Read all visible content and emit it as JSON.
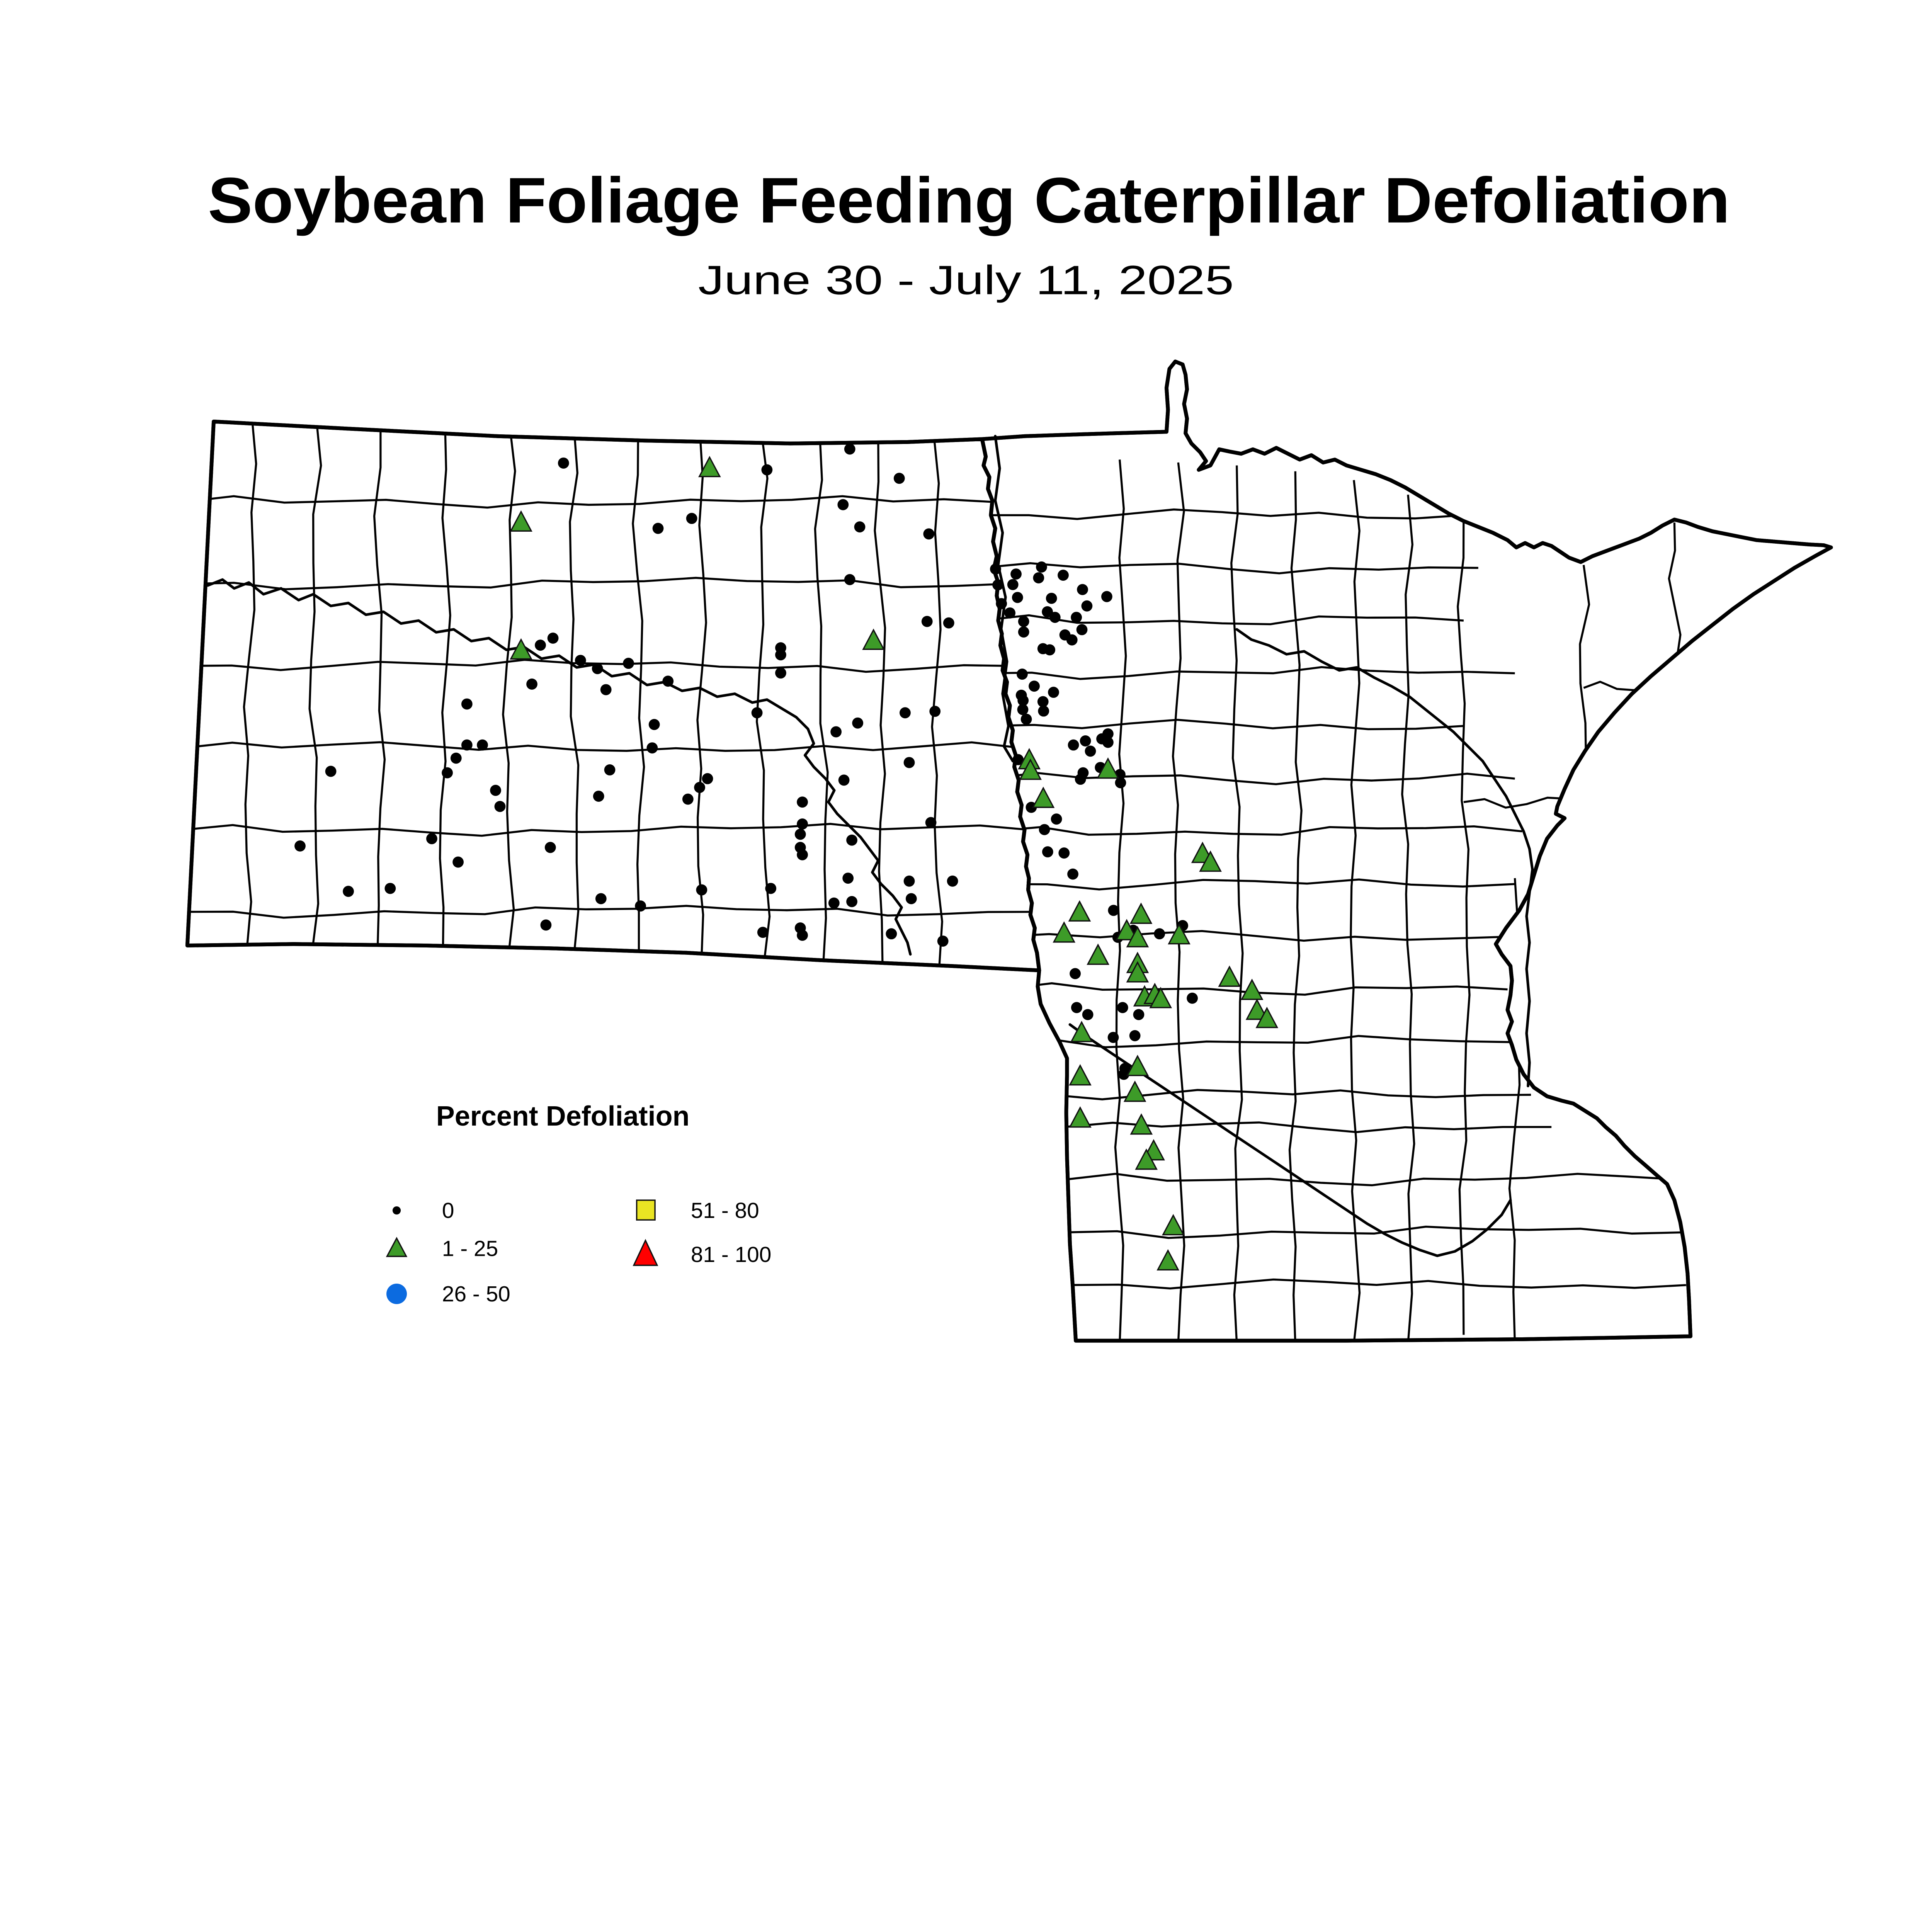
{
  "title": "Soybean Foliage Feeding Caterpillar Defoliation",
  "subtitle": "June 30 - July 11, 2025",
  "legend": {
    "title": "Percent Defoliation",
    "items": [
      {
        "label": "0",
        "shape": "dot",
        "color": "#000000"
      },
      {
        "label": "1 - 25",
        "shape": "triangle",
        "color": "#3D9B28"
      },
      {
        "label": "26 - 50",
        "shape": "circle",
        "color": "#0C6BE0"
      },
      {
        "label": "51 - 80",
        "shape": "square",
        "color": "#E9E423"
      },
      {
        "label": "81 - 100",
        "shape": "triangle-large",
        "color": "#FF0000"
      }
    ]
  },
  "colors": {
    "dot": "#000000",
    "triangle_fill": "#3D9B28",
    "triangle_stroke": "#111111",
    "outline": "#000000"
  },
  "points": {
    "zero": [
      [
        385,
        316.4
      ],
      [
        377.8,
        436
      ],
      [
        369.2,
        440.8
      ],
      [
        396.6,
        451.2
      ],
      [
        408.2,
        456.8
      ],
      [
        363.4,
        467.4
      ],
      [
        414,
        471.2
      ],
      [
        319,
        481
      ],
      [
        319,
        509
      ],
      [
        329.6,
        509
      ],
      [
        311.6,
        518
      ],
      [
        226,
        527
      ],
      [
        305.6,
        528
      ],
      [
        338.6,
        540
      ],
      [
        341.6,
        551
      ],
      [
        416.6,
        526
      ],
      [
        409,
        544
      ],
      [
        205,
        578
      ],
      [
        295,
        573
      ],
      [
        313,
        589
      ],
      [
        376,
        579
      ],
      [
        238,
        609
      ],
      [
        266.6,
        607
      ],
      [
        410.6,
        614
      ],
      [
        373,
        632
      ],
      [
        524,
        321
      ],
      [
        580.6,
        306.8
      ],
      [
        614.4,
        326.8
      ],
      [
        576,
        344.8
      ],
      [
        472.6,
        354.2
      ],
      [
        449.6,
        361
      ],
      [
        587.4,
        360
      ],
      [
        634.6,
        364.8
      ],
      [
        580.6,
        396
      ],
      [
        633.4,
        424.6
      ],
      [
        648.2,
        425.6
      ],
      [
        533.4,
        442.6
      ],
      [
        533.4,
        447.4
      ],
      [
        533.4,
        459.8
      ],
      [
        429.4,
        453.2
      ],
      [
        456.4,
        465.4
      ],
      [
        517.2,
        487
      ],
      [
        447,
        495
      ],
      [
        586,
        494
      ],
      [
        571.2,
        500
      ],
      [
        618.4,
        487
      ],
      [
        638.8,
        486
      ],
      [
        445.6,
        511
      ],
      [
        621.2,
        521
      ],
      [
        576.6,
        533
      ],
      [
        483.4,
        532
      ],
      [
        478,
        538
      ],
      [
        470,
        546
      ],
      [
        548.2,
        548
      ],
      [
        636,
        562
      ],
      [
        548.2,
        563
      ],
      [
        546.8,
        570
      ],
      [
        546.8,
        579
      ],
      [
        548.2,
        584
      ],
      [
        582,
        574
      ],
      [
        579.4,
        600
      ],
      [
        621.2,
        602
      ],
      [
        650.8,
        602
      ],
      [
        479.4,
        608
      ],
      [
        526.6,
        607
      ],
      [
        622.6,
        614
      ],
      [
        569.8,
        617
      ],
      [
        582,
        616
      ],
      [
        437.6,
        619
      ],
      [
        521.2,
        637
      ],
      [
        546.8,
        634
      ],
      [
        548.2,
        639
      ],
      [
        609,
        638
      ],
      [
        644.2,
        643
      ],
      [
        680.2,
        388.8
      ],
      [
        694.2,
        392.2
      ],
      [
        711.6,
        387.4
      ],
      [
        709.6,
        394.8
      ],
      [
        726.4,
        393
      ],
      [
        681.8,
        399.6
      ],
      [
        692,
        399.4
      ],
      [
        739.6,
        402.8
      ],
      [
        756.2,
        407.6
      ],
      [
        684.2,
        412.4
      ],
      [
        695.2,
        408.2
      ],
      [
        690,
        418.8
      ],
      [
        718.4,
        408.8
      ],
      [
        715.6,
        418
      ],
      [
        720.8,
        421.8
      ],
      [
        742.6,
        414
      ],
      [
        699.4,
        424.6
      ],
      [
        735.4,
        421.8
      ],
      [
        699.4,
        431.8
      ],
      [
        727.6,
        433.8
      ],
      [
        732.4,
        437.2
      ],
      [
        739.2,
        430.2
      ],
      [
        712.6,
        443.2
      ],
      [
        717.2,
        444
      ],
      [
        698.4,
        460.6
      ],
      [
        706.6,
        468.8
      ],
      [
        697.8,
        475
      ],
      [
        699,
        478.6
      ],
      [
        719.8,
        473
      ],
      [
        712.6,
        479.4
      ],
      [
        698.8,
        484.8
      ],
      [
        701.2,
        491.4
      ],
      [
        713,
        485.8
      ],
      [
        757,
        501.4
      ],
      [
        752.8,
        504.8
      ],
      [
        741.6,
        506.2
      ],
      [
        733.4,
        509
      ],
      [
        757,
        507.2
      ],
      [
        745,
        513.2
      ],
      [
        695.6,
        519
      ],
      [
        738.2,
        532.4
      ],
      [
        751.8,
        524.4
      ],
      [
        765.2,
        529.2
      ],
      [
        765.6,
        534.8
      ],
      [
        740,
        528
      ],
      [
        704.6,
        551.6
      ],
      [
        721.8,
        559.6
      ],
      [
        713.6,
        566.8
      ],
      [
        715.8,
        582
      ],
      [
        727,
        582.8
      ],
      [
        733,
        597.2
      ],
      [
        760.8,
        622
      ],
      [
        774.2,
        635.6
      ],
      [
        763.8,
        640.4
      ],
      [
        792.2,
        638
      ],
      [
        808,
        632.4
      ],
      [
        734.6,
        665.2
      ],
      [
        735.6,
        688.4
      ],
      [
        743.2,
        693.2
      ],
      [
        767,
        688.4
      ],
      [
        778,
        693.2
      ],
      [
        814.6,
        682
      ],
      [
        760.6,
        708.8
      ],
      [
        775.4,
        707.6
      ],
      [
        768.6,
        730
      ],
      [
        767.8,
        734
      ]
    ],
    "low": [
      [
        356,
        357.2
      ],
      [
        356,
        444.6
      ],
      [
        484.8,
        320
      ],
      [
        596.8,
        438
      ],
      [
        703.2,
        519.6
      ],
      [
        704,
        526.8
      ],
      [
        712.8,
        546
      ],
      [
        757,
        526
      ],
      [
        821.6,
        583.6
      ],
      [
        827,
        589.6
      ],
      [
        737.6,
        623.6
      ],
      [
        727,
        638
      ],
      [
        779.6,
        625.2
      ],
      [
        769.8,
        636.4
      ],
      [
        777.2,
        641.2
      ],
      [
        805.6,
        639.2
      ],
      [
        750.2,
        653.2
      ],
      [
        777.2,
        658.8
      ],
      [
        777.2,
        665.2
      ],
      [
        782,
        681.6
      ],
      [
        789,
        680
      ],
      [
        793,
        682.8
      ],
      [
        739,
        706
      ],
      [
        777.2,
        729.2
      ],
      [
        775.4,
        746.8
      ],
      [
        738,
        735.6
      ],
      [
        738,
        764.4
      ],
      [
        779.8,
        769.2
      ],
      [
        788.2,
        786.8
      ],
      [
        783.2,
        793.2
      ],
      [
        840,
        668.2
      ],
      [
        855.4,
        677.2
      ],
      [
        858.8,
        690.8
      ],
      [
        865.6,
        696.4
      ],
      [
        801.6,
        838
      ],
      [
        798,
        862
      ]
    ],
    "mid": [],
    "high": [],
    "severe": []
  }
}
